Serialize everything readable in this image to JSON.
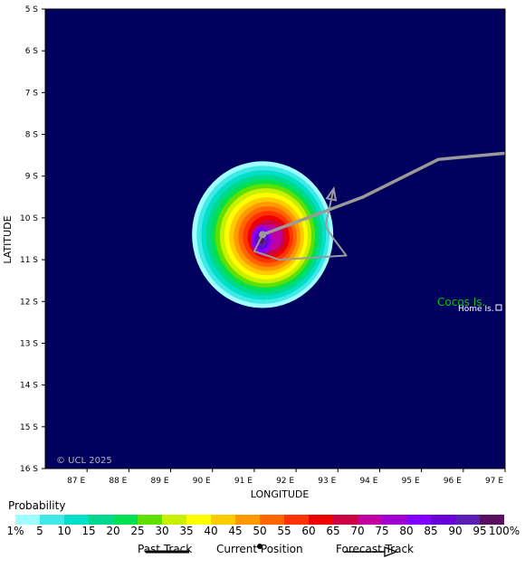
{
  "map": {
    "background_color": "#00005e",
    "lat_ticks": [
      "5 S",
      "6 S",
      "7 S",
      "8 S",
      "9 S",
      "10 S",
      "11 S",
      "12 S",
      "13 S",
      "14 S",
      "15 S",
      "16 S"
    ],
    "lon_ticks": [
      "87 E",
      "88 E",
      "89 E",
      "90 E",
      "91 E",
      "92 E",
      "93 E",
      "94 E",
      "95 E",
      "96 E",
      "97 E"
    ],
    "ylabel": "LATITUDE",
    "xlabel": "LONGITUDE",
    "copyright": "© UCL 2025",
    "place_main": "Cocos Is.",
    "place_sub": "Home Is.",
    "place_main_color": "#00c800",
    "storm_center": {
      "lat": -10.4,
      "lon": 91.2
    },
    "past_track": [
      {
        "lon": 97.0,
        "lat": -8.45
      },
      {
        "lon": 95.4,
        "lat": -8.6
      },
      {
        "lon": 94.3,
        "lat": -9.15
      },
      {
        "lon": 93.6,
        "lat": -9.5
      },
      {
        "lon": 91.2,
        "lat": -10.4
      }
    ],
    "forecast_track": [
      {
        "lon": 91.2,
        "lat": -10.4
      },
      {
        "lon": 91.0,
        "lat": -10.8
      },
      {
        "lon": 91.6,
        "lat": -11.0
      },
      {
        "lon": 93.2,
        "lat": -10.9
      },
      {
        "lon": 92.9,
        "lat": -10.5
      },
      {
        "lon": 92.7,
        "lat": -10.2
      },
      {
        "lon": 92.9,
        "lat": -9.3
      }
    ]
  },
  "legend": {
    "title": "Probability",
    "colors": [
      "#a0ffff",
      "#40e8e8",
      "#00e0c8",
      "#00d890",
      "#00e050",
      "#60e000",
      "#c8f000",
      "#ffff00",
      "#ffcc00",
      "#ff9900",
      "#ff6600",
      "#ff3300",
      "#ee0000",
      "#cc0044",
      "#c000a0",
      "#a000d0",
      "#8000ff",
      "#6a00d8",
      "#5a1eb4",
      "#5a1060"
    ],
    "labels": [
      "1%",
      "5",
      "10",
      "15",
      "20",
      "25",
      "30",
      "35",
      "40",
      "45",
      "50",
      "55",
      "60",
      "65",
      "70",
      "75",
      "80",
      "85",
      "90",
      "95",
      "100%"
    ]
  },
  "key": {
    "past_track": "Past Track",
    "current_position": "Current Position",
    "forecast_track": "Forecast Track"
  }
}
